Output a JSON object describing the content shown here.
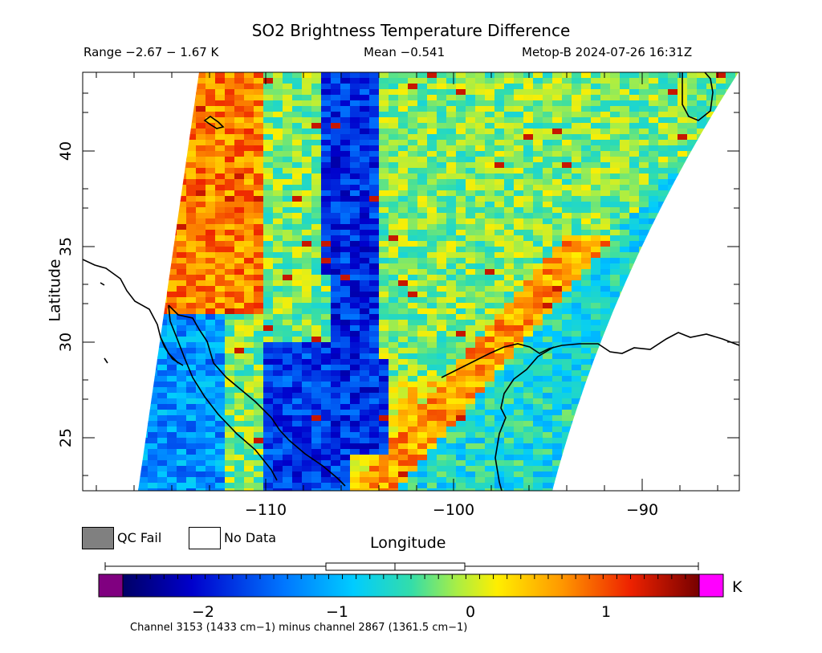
{
  "title": "SO2 Brightness Temperature Difference",
  "range_text": "Range −2.67 − 1.67 K",
  "mean_text": "Mean −0.541",
  "satellite_text": "Metop-B 2024-07-26 16:31Z",
  "axes": {
    "ylabel": "Latitude",
    "xlabel": "Longitude",
    "lat_ticks": [
      "25",
      "30",
      "35",
      "40"
    ],
    "lon_ticks": [
      "−110",
      "−100",
      "−90"
    ]
  },
  "legend": {
    "qc_fail": "QC Fail",
    "no_data": "No Data",
    "qc_color": "#808080",
    "no_data_color": "#ffffff"
  },
  "colorbar": {
    "unit": "K",
    "ticks": [
      "−2",
      "−1",
      "0",
      "1"
    ],
    "min": -2.67,
    "max": 1.67,
    "mean": -0.541,
    "under_color": "#800080",
    "over_color": "#ff00ff"
  },
  "footnote": "Channel 3153 (1433 cm−1) minus channel 2867 (1361.5 cm−1)",
  "map": {
    "lon_range": [
      -120,
      -85
    ],
    "lat_range": [
      22,
      44
    ]
  }
}
